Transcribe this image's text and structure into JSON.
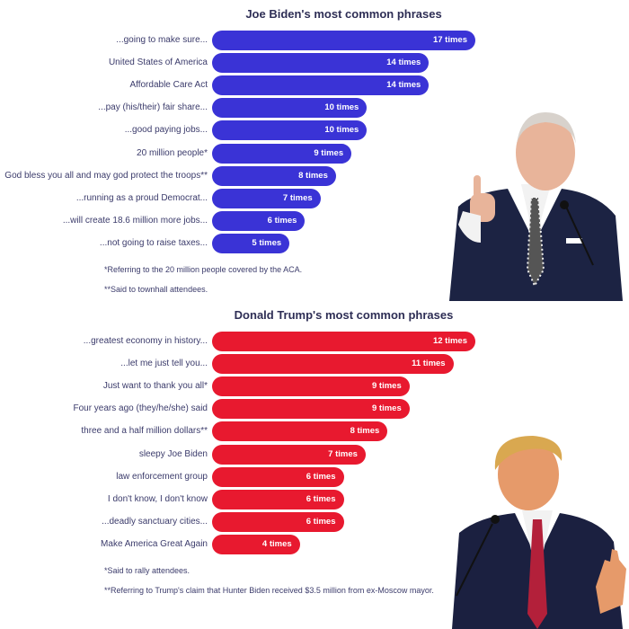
{
  "chart_data": [
    {
      "type": "bar",
      "orientation": "horizontal",
      "title": "Joe Biden's most common phrases",
      "color": "#3a33d6",
      "categories": [
        "...going to make sure...",
        "United States of America",
        "Affordable Care Act",
        "...pay (his/their) fair share...",
        "...good paying jobs...",
        "20 million people*",
        "God bless you all and may god protect the troops**",
        "...running as a proud Democrat...",
        "...will create 18.6 million more jobs...",
        "...not going to raise taxes..."
      ],
      "values": [
        17,
        14,
        14,
        10,
        10,
        9,
        8,
        7,
        6,
        5
      ],
      "value_labels": [
        "17 times",
        "14 times",
        "14 times",
        "10 times",
        "10 times",
        "9 times",
        "8 times",
        "7 times",
        "6 times",
        "5 times"
      ],
      "footnotes": [
        "*Referring to the 20 million people covered by the ACA.",
        "**Said to townhall attendees."
      ],
      "grid": false
    },
    {
      "type": "bar",
      "orientation": "horizontal",
      "title": "Donald Trump's most common phrases",
      "color": "#e8192f",
      "categories": [
        "...greatest economy in history...",
        "...let me just tell you...",
        "Just want to thank you all*",
        "Four years ago (they/he/she) said",
        "three and a half million dollars**",
        "sleepy Joe Biden",
        "law enforcement group",
        "I don't know, I don't know",
        "...deadly sanctuary cities...",
        "Make America Great Again"
      ],
      "values": [
        12,
        11,
        9,
        9,
        8,
        7,
        6,
        6,
        6,
        4
      ],
      "value_labels": [
        "12 times",
        "11 times",
        "9 times",
        "9 times",
        "8 times",
        "7 times",
        "6 times",
        "6 times",
        "6 times",
        "4 times"
      ],
      "footnotes": [
        "*Said to rally attendees.",
        "**Referring to Trump's claim that Hunter Biden received $3.5 million from ex-Moscow mayor."
      ],
      "grid": false
    }
  ],
  "photos": {
    "biden": {
      "suit": "#1c2343",
      "hair": "#d8d2cc",
      "skin": "#e8b49a"
    },
    "trump": {
      "suit": "#1b2040",
      "hair": "#d9a850",
      "skin": "#e69a6a",
      "tie": "#b3203a"
    }
  }
}
